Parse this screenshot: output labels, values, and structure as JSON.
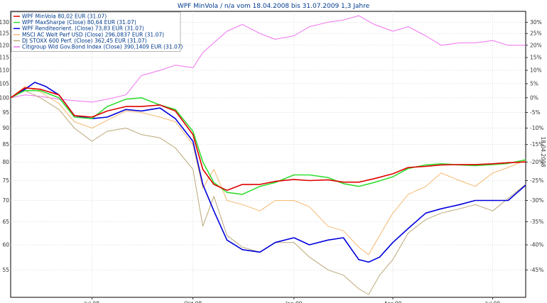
{
  "chart_data": {
    "type": "line",
    "title": "WPF MinVola / n/a vom 18.04.2008 bis 31.07.2009 1,3 Jahre",
    "right_axis_label": "18.04.2008",
    "x_axis": {
      "start": "2008-04-18",
      "end": "2009-07-31",
      "ticks": [
        {
          "date": "2008-07-01",
          "label": "Jul 08"
        },
        {
          "date": "2008-10-01",
          "label": "Okt 08"
        },
        {
          "date": "2009-01-01",
          "label": "Jan 09"
        },
        {
          "date": "2009-04-01",
          "label": "Apr 09"
        },
        {
          "date": "2009-07-01",
          "label": "Jul 09"
        }
      ]
    },
    "y_left": {
      "type": "log",
      "range": [
        50,
        135
      ],
      "ticks": [
        55,
        60,
        65,
        70,
        75,
        80,
        85,
        90,
        95,
        100,
        105,
        110,
        115,
        120,
        125,
        130
      ]
    },
    "y_right": {
      "ticks": [
        "30%",
        "25%",
        "20%",
        "15%",
        "10%",
        "5%",
        "0%",
        "-5%",
        "-10%",
        "-15%",
        "-20%",
        "-25%",
        "-30%",
        "-35%",
        "-40%",
        "-45%"
      ]
    },
    "legend": {
      "placement": "top-left",
      "entries": [
        "WPF MinVola 80,02 EUR (31.07)",
        "WPF MaxSharpe (Close) 80,64 EUR (31.07)",
        "WPF Renditeorient. (Close) 73,83 EUR (31.07)",
        "MSCI AC Welt Perf USD (Close) 296,0837 EUR (31.07)",
        "DJ STOXX 600 Perf. (Close) 362,45 EUR (31.07)",
        "Citigroup Wld Gov.Bond Index (Close) 390,1409 EUR (31.07)"
      ]
    },
    "series": [
      {
        "name": "WPF MinVola 80,02 EUR (31.07)",
        "color": "#e00000",
        "x": [
          "2008-04-18",
          "2008-05-01",
          "2008-05-15",
          "2008-06-01",
          "2008-06-15",
          "2008-07-01",
          "2008-07-15",
          "2008-08-01",
          "2008-08-15",
          "2008-09-01",
          "2008-09-15",
          "2008-10-01",
          "2008-10-10",
          "2008-10-20",
          "2008-11-01",
          "2008-11-15",
          "2008-12-01",
          "2008-12-15",
          "2009-01-01",
          "2009-01-15",
          "2009-02-01",
          "2009-02-15",
          "2009-03-01",
          "2009-03-15",
          "2009-04-01",
          "2009-04-15",
          "2009-05-01",
          "2009-05-15",
          "2009-06-01",
          "2009-06-15",
          "2009-07-01",
          "2009-07-15",
          "2009-07-31"
        ],
        "values": [
          100,
          103.5,
          103,
          101,
          94,
          93.5,
          95.5,
          97,
          97,
          97.5,
          95.5,
          88,
          78,
          74,
          72.5,
          74,
          74,
          74.8,
          75.3,
          75,
          75.2,
          74.6,
          74.6,
          75.5,
          76.8,
          78.5,
          78.8,
          79.2,
          79.3,
          79.3,
          79.5,
          79.8,
          80.02
        ]
      },
      {
        "name": "WPF MaxSharpe (Close) 80,64 EUR (31.07)",
        "color": "#33dd33",
        "x": [
          "2008-04-18",
          "2008-05-01",
          "2008-05-15",
          "2008-06-01",
          "2008-06-15",
          "2008-07-01",
          "2008-07-15",
          "2008-08-01",
          "2008-08-15",
          "2008-09-01",
          "2008-09-15",
          "2008-10-01",
          "2008-10-10",
          "2008-10-20",
          "2008-11-01",
          "2008-11-15",
          "2008-12-01",
          "2008-12-15",
          "2009-01-01",
          "2009-01-15",
          "2009-02-01",
          "2009-02-15",
          "2009-03-01",
          "2009-03-15",
          "2009-04-01",
          "2009-04-15",
          "2009-05-01",
          "2009-05-15",
          "2009-06-01",
          "2009-06-15",
          "2009-07-01",
          "2009-07-15",
          "2009-07-31"
        ],
        "values": [
          100,
          102.5,
          102.5,
          100,
          93.5,
          93,
          97,
          99.5,
          100,
          97.5,
          96,
          89,
          80,
          74.5,
          72,
          71.5,
          73.5,
          74.5,
          76.5,
          76.5,
          75.8,
          74.2,
          73.5,
          74.5,
          76,
          78.2,
          79.2,
          79.5,
          79.2,
          79,
          79.3,
          79.6,
          80.64
        ]
      },
      {
        "name": "WPF Renditeorient. (Close) 73,83 EUR (31.07)",
        "color": "#0000dd",
        "x": [
          "2008-04-18",
          "2008-05-01",
          "2008-05-10",
          "2008-05-20",
          "2008-06-01",
          "2008-06-15",
          "2008-07-01",
          "2008-07-15",
          "2008-08-01",
          "2008-08-15",
          "2008-09-01",
          "2008-09-15",
          "2008-10-01",
          "2008-10-10",
          "2008-10-20",
          "2008-11-01",
          "2008-11-15",
          "2008-12-01",
          "2008-12-15",
          "2009-01-01",
          "2009-01-15",
          "2009-02-01",
          "2009-02-15",
          "2009-03-01",
          "2009-03-10",
          "2009-03-20",
          "2009-04-01",
          "2009-04-15",
          "2009-05-01",
          "2009-05-15",
          "2009-06-01",
          "2009-06-15",
          "2009-07-01",
          "2009-07-15",
          "2009-07-31"
        ],
        "values": [
          100,
          103,
          105.5,
          104,
          101,
          94,
          93,
          93.5,
          96,
          95.5,
          96.5,
          93,
          86,
          74,
          67.5,
          61,
          59,
          58.5,
          60.5,
          61.5,
          60,
          61,
          61.5,
          57,
          56.5,
          57.5,
          60.5,
          63.5,
          67,
          68,
          69,
          70,
          70,
          70,
          73.83
        ]
      },
      {
        "name": "MSCI AC Welt Perf USD (Close) 296,0837 EUR (31.07)",
        "color": "#f5b870",
        "x": [
          "2008-04-18",
          "2008-05-01",
          "2008-05-15",
          "2008-06-01",
          "2008-06-15",
          "2008-07-01",
          "2008-07-15",
          "2008-08-01",
          "2008-08-15",
          "2008-09-01",
          "2008-09-15",
          "2008-10-01",
          "2008-10-10",
          "2008-10-20",
          "2008-11-01",
          "2008-11-15",
          "2008-12-01",
          "2008-12-15",
          "2009-01-01",
          "2009-01-15",
          "2009-02-01",
          "2009-02-15",
          "2009-03-01",
          "2009-03-10",
          "2009-03-20",
          "2009-04-01",
          "2009-04-15",
          "2009-05-01",
          "2009-05-15",
          "2009-06-01",
          "2009-06-15",
          "2009-07-01",
          "2009-07-15",
          "2009-07-31"
        ],
        "values": [
          100,
          104,
          102,
          98,
          92,
          90,
          92.5,
          95.5,
          95,
          93.5,
          92,
          85,
          73,
          78,
          70,
          69,
          67.5,
          70,
          70,
          68.5,
          64,
          63,
          59.5,
          58,
          62,
          67,
          71.5,
          73.5,
          77,
          75,
          73.5,
          77,
          78.5,
          80.5
        ]
      },
      {
        "name": "DJ STOXX 600 Perf. (Close) 362,45 EUR (31.07)",
        "color": "#bba878",
        "x": [
          "2008-04-18",
          "2008-05-01",
          "2008-05-15",
          "2008-06-01",
          "2008-06-15",
          "2008-07-01",
          "2008-07-15",
          "2008-08-01",
          "2008-08-15",
          "2008-09-01",
          "2008-09-15",
          "2008-10-01",
          "2008-10-10",
          "2008-10-20",
          "2008-11-01",
          "2008-11-15",
          "2008-12-01",
          "2008-12-15",
          "2009-01-01",
          "2009-01-15",
          "2009-02-01",
          "2009-02-15",
          "2009-03-01",
          "2009-03-10",
          "2009-03-20",
          "2009-04-01",
          "2009-04-15",
          "2009-05-01",
          "2009-05-15",
          "2009-06-01",
          "2009-06-15",
          "2009-07-01",
          "2009-07-15",
          "2009-07-31"
        ],
        "values": [
          100,
          102.5,
          100,
          96,
          90,
          86,
          89,
          90,
          88,
          87,
          84,
          78,
          64,
          71,
          62,
          59.5,
          58.5,
          60.5,
          60.5,
          57.5,
          55,
          54,
          51.5,
          50.5,
          54,
          57,
          62.5,
          65.5,
          67,
          68,
          69,
          67.5,
          70.5,
          74
        ]
      },
      {
        "name": "Citigroup Wld Gov.Bond Index (Close) 390,1409 EUR (31.07)",
        "color": "#f070f0",
        "x": [
          "2008-04-18",
          "2008-05-01",
          "2008-05-15",
          "2008-06-01",
          "2008-06-15",
          "2008-07-01",
          "2008-07-15",
          "2008-08-01",
          "2008-08-15",
          "2008-09-01",
          "2008-09-15",
          "2008-10-01",
          "2008-10-10",
          "2008-10-20",
          "2008-11-01",
          "2008-11-15",
          "2008-12-01",
          "2008-12-15",
          "2009-01-01",
          "2009-01-15",
          "2009-02-01",
          "2009-02-15",
          "2009-03-01",
          "2009-03-15",
          "2009-04-01",
          "2009-04-15",
          "2009-05-01",
          "2009-05-15",
          "2009-06-01",
          "2009-06-15",
          "2009-07-01",
          "2009-07-15",
          "2009-07-31"
        ],
        "values": [
          100,
          101,
          100.5,
          99.5,
          99,
          98.5,
          99.5,
          101,
          108,
          110,
          112,
          111,
          117,
          121,
          126,
          129,
          125,
          122.5,
          124,
          128,
          130,
          131,
          133,
          129,
          126,
          128,
          124,
          120,
          121,
          121,
          122,
          120,
          120
        ]
      }
    ]
  }
}
